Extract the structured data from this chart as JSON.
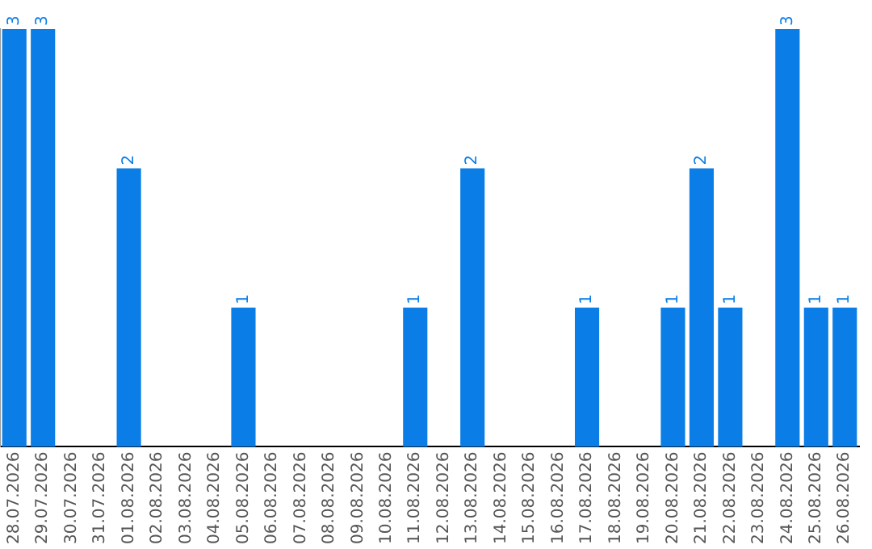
{
  "chart_data": {
    "type": "bar",
    "categories": [
      "28.07.2026",
      "29.07.2026",
      "30.07.2026",
      "31.07.2026",
      "01.08.2026",
      "02.08.2026",
      "03.08.2026",
      "04.08.2026",
      "05.08.2026",
      "06.08.2026",
      "07.08.2026",
      "08.08.2026",
      "09.08.2026",
      "10.08.2026",
      "11.08.2026",
      "12.08.2026",
      "13.08.2026",
      "14.08.2026",
      "15.08.2026",
      "16.08.2026",
      "17.08.2026",
      "18.08.2026",
      "19.08.2026",
      "20.08.2026",
      "21.08.2026",
      "22.08.2026",
      "23.08.2026",
      "24.08.2026",
      "25.08.2026",
      "26.08.2026"
    ],
    "values": [
      3,
      3,
      0,
      0,
      2,
      0,
      0,
      0,
      1,
      0,
      0,
      0,
      0,
      0,
      1,
      0,
      2,
      0,
      0,
      0,
      1,
      0,
      0,
      1,
      2,
      1,
      0,
      3,
      1,
      1
    ],
    "value_labels": [
      "3",
      "3",
      null,
      null,
      "2",
      null,
      null,
      null,
      "1",
      null,
      null,
      null,
      null,
      null,
      "1",
      null,
      "2",
      null,
      null,
      null,
      "1",
      null,
      null,
      "1",
      "2",
      "1",
      null,
      "3",
      "1",
      "1"
    ],
    "color": "#0a7ee6",
    "tick_labels": "x",
    "grid": false,
    "legend": false
  }
}
